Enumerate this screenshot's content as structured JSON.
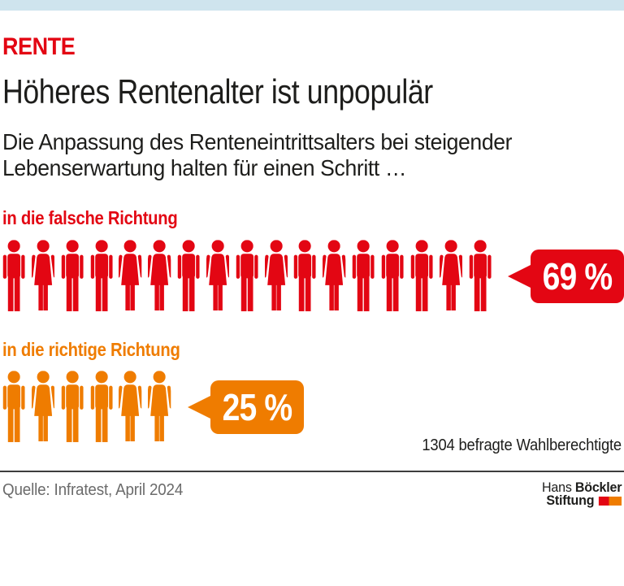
{
  "theme": {
    "accent_red": "#e30613",
    "accent_orange": "#ef7c00",
    "topbar": "#cfe4ee",
    "text": "#1d1d1b",
    "muted": "#6b6b6b",
    "divider": "#3d3d3d"
  },
  "header": {
    "kicker": "RENTE",
    "title": "Höheres Rentenalter ist unpopulär",
    "subtitle": "Die Anpassung des Renteneintrittsalters bei steigender Lebenserwartung halten für einen Schritt …"
  },
  "chart_data": {
    "type": "pictograph-bar",
    "title": "Höheres Rentenalter ist unpopulär",
    "unit": "%",
    "legend": false,
    "series": [
      {
        "label": "in die falsche Richtung",
        "value": 69,
        "value_label": "69 %",
        "color": "#e30613",
        "icon_count": 17,
        "icons": [
          "man",
          "woman",
          "man",
          "man",
          "woman",
          "woman",
          "man",
          "woman",
          "man",
          "woman",
          "man",
          "woman",
          "man",
          "man",
          "man",
          "woman",
          "man"
        ]
      },
      {
        "label": "in die richtige Richtung",
        "value": 25,
        "value_label": "25 %",
        "color": "#ef7c00",
        "icon_count": 6,
        "icons": [
          "man",
          "woman",
          "man",
          "man",
          "woman",
          "woman"
        ]
      }
    ],
    "note": "1304 befragte Wahlberechtigte"
  },
  "footer": {
    "source": "Quelle: Infratest, April 2024",
    "logo": {
      "line1_light": "Hans",
      "line1_bold": "Böckler",
      "line2_bold": "Stiftung",
      "mark_colors": [
        "#e30613",
        "#ef7c00"
      ]
    }
  }
}
